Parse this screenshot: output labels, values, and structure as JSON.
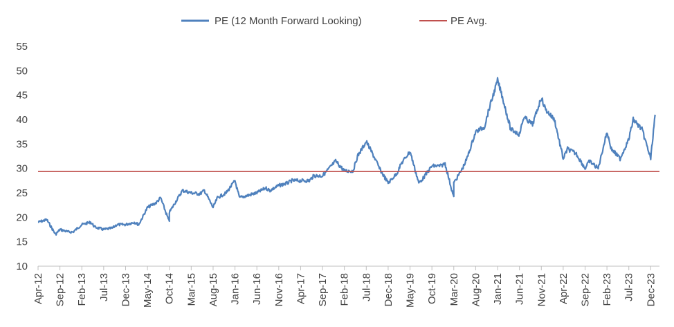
{
  "chart_data": {
    "type": "line",
    "title": "",
    "xlabel": "",
    "ylabel": "",
    "ylim": [
      10,
      55
    ],
    "yticks": [
      10,
      15,
      20,
      25,
      30,
      35,
      40,
      45,
      50,
      55
    ],
    "grid": false,
    "legend_position": "top-center",
    "xtick_labels": [
      "Apr-12",
      "Sep-12",
      "Feb-13",
      "Jul-13",
      "Dec-13",
      "May-14",
      "Oct-14",
      "Mar-15",
      "Aug-15",
      "Jan-16",
      "Jun-16",
      "Nov-16",
      "Apr-17",
      "Sep-17",
      "Feb-18",
      "Jul-18",
      "Dec-18",
      "May-19",
      "Oct-19",
      "Mar-20",
      "Aug-20",
      "Jan-21",
      "Jun-21",
      "Nov-21",
      "Apr-22",
      "Sep-22",
      "Feb-23",
      "Jul-23",
      "Dec-23"
    ],
    "series": [
      {
        "name": "PE (12 Month Forward Looking)",
        "color": "#4F81BD",
        "x": [
          "Apr-12",
          "Jun-12",
          "Aug-12",
          "Sep-12",
          "Nov-12",
          "Dec-12",
          "Feb-13",
          "Apr-13",
          "May-13",
          "Jul-13",
          "Sep-13",
          "Oct-13",
          "Dec-13",
          "Feb-14",
          "Mar-14",
          "May-14",
          "Jul-14",
          "Aug-14",
          "Oct-14",
          "Oct-14",
          "Dec-14",
          "Jan-15",
          "Mar-15",
          "May-15",
          "Jun-15",
          "Aug-15",
          "Sep-15",
          "Nov-15",
          "Jan-16",
          "Feb-16",
          "Apr-16",
          "Jun-16",
          "Aug-16",
          "Sep-16",
          "Nov-16",
          "Jan-17",
          "Feb-17",
          "Apr-17",
          "Jun-17",
          "Jul-17",
          "Sep-17",
          "Nov-17",
          "Dec-17",
          "Feb-18",
          "Apr-18",
          "May-18",
          "Jul-18",
          "Sep-18",
          "Oct-18",
          "Dec-18",
          "Feb-19",
          "Mar-19",
          "May-19",
          "Jul-19",
          "Aug-19",
          "Oct-19",
          "Dec-19",
          "Jan-20",
          "Mar-20",
          "Mar-20",
          "May-20",
          "Jun-20",
          "Aug-20",
          "Oct-20",
          "Nov-20",
          "Jan-21",
          "Feb-21",
          "Apr-21",
          "Jun-21",
          "Jul-21",
          "Sep-21",
          "Nov-21",
          "Dec-21",
          "Feb-22",
          "Apr-22",
          "May-22",
          "Jul-22",
          "Sep-22",
          "Oct-22",
          "Dec-22",
          "Feb-23",
          "Mar-23",
          "May-23",
          "Jul-23",
          "Aug-23",
          "Oct-23",
          "Dec-23",
          "Jan-24"
        ],
        "y": [
          19,
          19.5,
          16.5,
          17.5,
          17,
          17,
          18.5,
          19,
          18,
          17.5,
          17.8,
          18.5,
          18.5,
          19,
          18.5,
          22,
          23,
          24,
          19,
          21,
          24,
          25.5,
          25,
          24.8,
          25.5,
          22,
          24,
          25,
          27.5,
          24,
          24.5,
          25,
          26,
          25.5,
          26.5,
          27,
          27.5,
          27.5,
          27.5,
          28.5,
          28.5,
          30.5,
          31.5,
          29.5,
          29.5,
          32.5,
          35.5,
          32,
          30,
          27,
          29,
          31,
          33.5,
          27,
          28,
          30.5,
          30.5,
          31,
          24,
          27,
          30,
          32,
          37.5,
          38.5,
          42,
          48,
          45,
          38,
          37,
          40.5,
          39,
          44.5,
          42,
          40,
          32,
          34,
          33,
          30,
          31.5,
          30,
          37.5,
          34,
          32,
          36,
          40,
          38,
          32,
          41
        ]
      },
      {
        "name": "PE Avg.",
        "color": "#C0504D",
        "constant": 29.4
      }
    ]
  }
}
